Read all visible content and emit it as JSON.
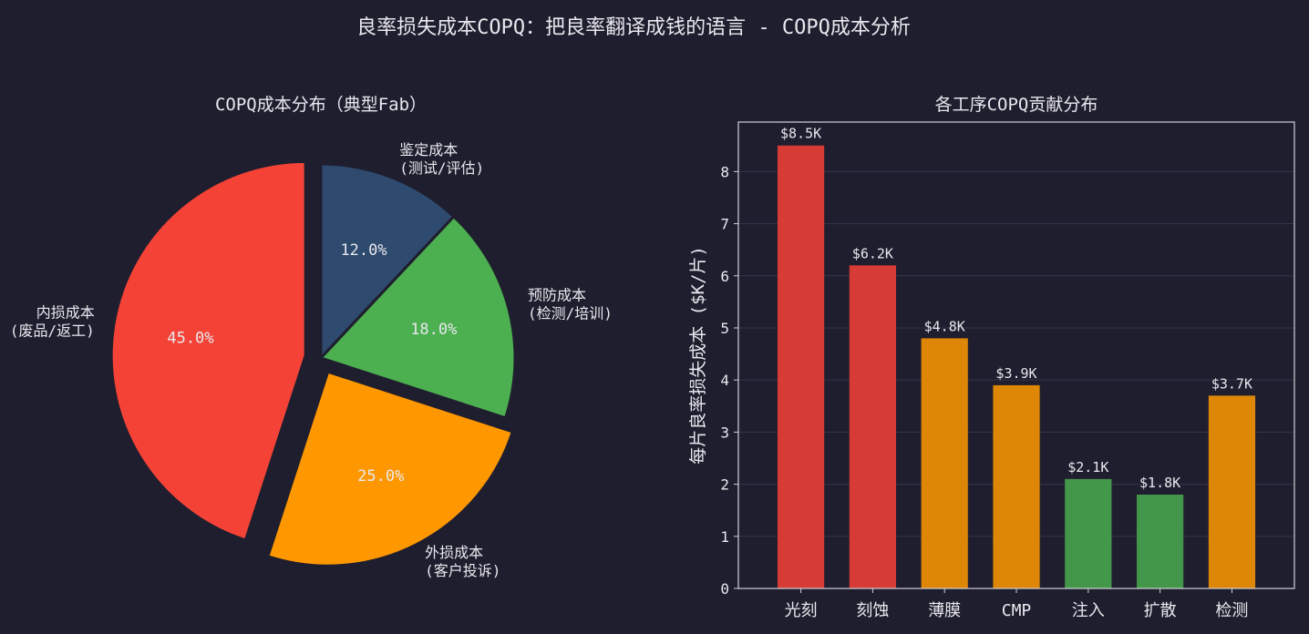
{
  "figure": {
    "suptitle": "良率损失成本COPQ：把良率翻译成钱的语言 - COPQ成本分析"
  },
  "chart_data": [
    {
      "type": "pie",
      "title": "COPQ成本分布（典型Fab）",
      "slices": [
        {
          "label_line1": "鉴定成本",
          "label_line2": "(测试/评估)",
          "value": 12.0,
          "pct_label": "12.0%",
          "color": "#2e4a6e",
          "exploded": false
        },
        {
          "label_line1": "预防成本",
          "label_line2": "(检测/培训)",
          "value": 18.0,
          "pct_label": "18.0%",
          "color": "#4caf50",
          "exploded": false
        },
        {
          "label_line1": "外损成本",
          "label_line2": "(客户投诉)",
          "value": 25.0,
          "pct_label": "25.0%",
          "color": "#ff9800",
          "exploded": true
        },
        {
          "label_line1": "内损成本",
          "label_line2": "(废品/返工)",
          "value": 45.0,
          "pct_label": "45.0%",
          "color": "#f44336",
          "exploded": true
        }
      ],
      "start_angle_deg": 90,
      "direction": "clockwise"
    },
    {
      "type": "bar",
      "title": "各工序COPQ贡献分布",
      "ylabel": "每片良率损失成本 ($K/片)",
      "categories": [
        "光刻",
        "刻蚀",
        "薄膜",
        "CMP",
        "注入",
        "扩散",
        "检测"
      ],
      "values": [
        8.5,
        6.2,
        4.8,
        3.9,
        2.1,
        1.8,
        3.7
      ],
      "value_labels": [
        "$8.5K",
        "$6.2K",
        "$4.8K",
        "$3.9K",
        "$2.1K",
        "$1.8K",
        "$3.7K"
      ],
      "colors": [
        "#d63b35",
        "#d63b35",
        "#de8605",
        "#de8605",
        "#43974a",
        "#43974a",
        "#de8605"
      ],
      "ylim": [
        0,
        8.95
      ],
      "yticks": [
        0,
        1,
        2,
        3,
        4,
        5,
        6,
        7,
        8
      ],
      "grid": true
    }
  ]
}
